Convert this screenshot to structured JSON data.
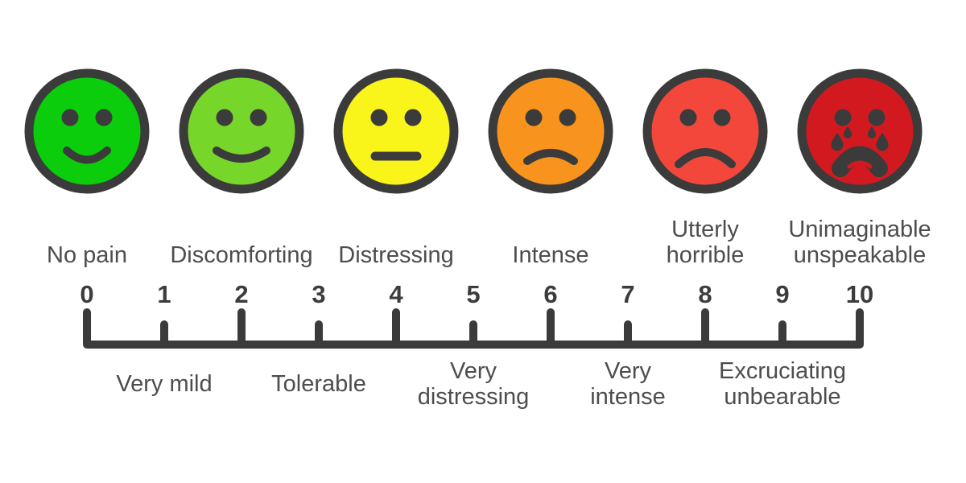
{
  "figure": {
    "name": "Pain scale chart",
    "background": "#ffffff",
    "outline_color": "#3b3b3b",
    "text_color": "#4d4d4d",
    "number_color": "#3c3c3c"
  },
  "chart_data": {
    "type": "table",
    "title": "",
    "axis": {
      "min": 0,
      "max": 10,
      "tick_values": [
        0,
        1,
        2,
        3,
        4,
        5,
        6,
        7,
        8,
        9,
        10
      ],
      "major_tick_every": 2
    },
    "faces": [
      {
        "value": 0,
        "label_lines": [
          "No pain"
        ],
        "color": "#0bcd0b",
        "expression": "smile"
      },
      {
        "value": 2,
        "label_lines": [
          "Discomforting"
        ],
        "color": "#77d62a",
        "expression": "smile-wide"
      },
      {
        "value": 4,
        "label_lines": [
          "Distressing"
        ],
        "color": "#f9f51a",
        "expression": "neutral"
      },
      {
        "value": 6,
        "label_lines": [
          "Intense"
        ],
        "color": "#f8941d",
        "expression": "frown"
      },
      {
        "value": 8,
        "label_lines": [
          "Utterly",
          "horrible"
        ],
        "color": "#f3473b",
        "expression": "frown-deep"
      },
      {
        "value": 10,
        "label_lines": [
          "Unimaginable",
          "unspeakable"
        ],
        "color": "#d2191f",
        "expression": "crying"
      }
    ],
    "intermediate_labels": [
      {
        "value": 1,
        "label_lines": [
          "Very mild"
        ]
      },
      {
        "value": 3,
        "label_lines": [
          "Tolerable"
        ]
      },
      {
        "value": 5,
        "label_lines": [
          "Very",
          "distressing"
        ]
      },
      {
        "value": 7,
        "label_lines": [
          "Very",
          "intense"
        ]
      },
      {
        "value": 9,
        "label_lines": [
          "Excruciating",
          "unbearable"
        ]
      }
    ]
  }
}
